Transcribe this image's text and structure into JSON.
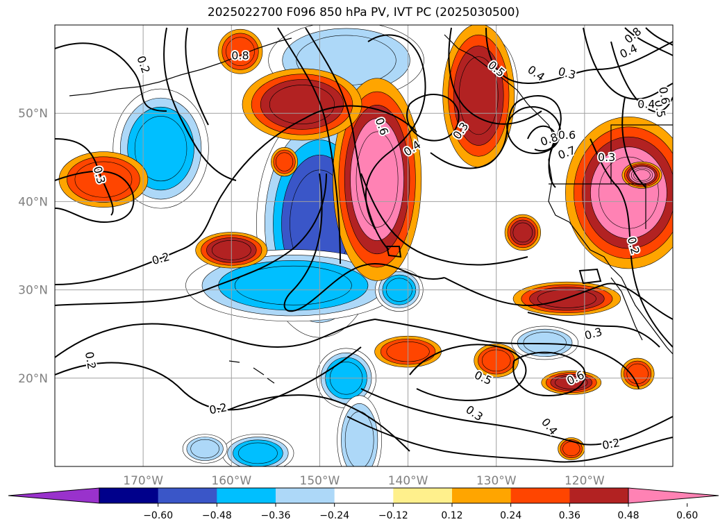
{
  "chart_data": {
    "type": "heatmap",
    "title": "2025022700 F096 850 hPa PV, IVT PC (2025030500)",
    "map": {
      "lon_range": [
        -180,
        -110
      ],
      "lat_range": [
        10,
        60
      ],
      "lat_ticks": [
        {
          "value": 50,
          "label": "50°N"
        },
        {
          "value": 40,
          "label": "40°N"
        },
        {
          "value": 30,
          "label": "30°N"
        },
        {
          "value": 20,
          "label": "20°N"
        }
      ],
      "lon_ticks": [
        {
          "value": -170,
          "label": "170°W"
        },
        {
          "value": -160,
          "label": "160°W"
        },
        {
          "value": -150,
          "label": "150°W"
        },
        {
          "value": -140,
          "label": "140°W"
        },
        {
          "value": -130,
          "label": "130°W"
        },
        {
          "value": -120,
          "label": "120°W"
        }
      ],
      "grid": true
    },
    "colorbar": {
      "extend": "both",
      "levels": [
        -0.72,
        -0.6,
        -0.48,
        -0.36,
        -0.24,
        -0.12,
        0.12,
        0.24,
        0.36,
        0.48,
        0.6,
        0.72
      ],
      "tick_labels": [
        "−0.60",
        "−0.48",
        "−0.36",
        "−0.24",
        "−0.12",
        "0.12",
        "0.24",
        "0.36",
        "0.48",
        "0.60"
      ],
      "colors": [
        "#9932cc",
        "#00008b",
        "#3a56c8",
        "#00bfff",
        "#add8f8",
        "#ffffff",
        "#fff08c",
        "#ffa500",
        "#ff4500",
        "#b22222",
        "#ff82b4"
      ]
    },
    "shaded_regions": [
      {
        "lon": -150,
        "lat": 38,
        "rx": 3,
        "ry": 4.5,
        "value": -0.66
      },
      {
        "lon": -150,
        "lat": 37.5,
        "rx": 5,
        "ry": 9,
        "value": -0.5
      },
      {
        "lon": -153,
        "lat": 30.5,
        "rx": 9,
        "ry": 3,
        "value": -0.4
      },
      {
        "lon": -168,
        "lat": 46,
        "rx": 4,
        "ry": 5,
        "value": -0.4
      },
      {
        "lon": -147,
        "lat": 56,
        "rx": 7,
        "ry": 3.5,
        "value": -0.3
      },
      {
        "lon": -147,
        "lat": 20,
        "rx": 2.5,
        "ry": 2.5,
        "value": -0.4
      },
      {
        "lon": -141,
        "lat": 30,
        "rx": 2,
        "ry": 1.8,
        "value": -0.4
      },
      {
        "lon": -124.5,
        "lat": 24,
        "rx": 3,
        "ry": 1.5,
        "value": -0.3
      },
      {
        "lon": -145.5,
        "lat": 13,
        "rx": 2,
        "ry": 4,
        "value": -0.3
      },
      {
        "lon": -157,
        "lat": 11.5,
        "rx": 3,
        "ry": 1.6,
        "value": -0.4
      },
      {
        "lon": -163,
        "lat": 12,
        "rx": 2,
        "ry": 1.3,
        "value": -0.3
      },
      {
        "lon": -131,
        "lat": 53,
        "rx": 3,
        "ry": 5,
        "value": -0.15
      },
      {
        "lon": -143.5,
        "lat": 42.5,
        "rx": 3.5,
        "ry": 8,
        "value": 0.5
      },
      {
        "lon": -152,
        "lat": 51,
        "rx": 5,
        "ry": 3,
        "value": 0.38
      },
      {
        "lon": -132,
        "lat": 52,
        "rx": 3,
        "ry": 6,
        "value": 0.4
      },
      {
        "lon": -115,
        "lat": 41,
        "rx": 5,
        "ry": 6,
        "value": 0.5
      },
      {
        "lon": -113.5,
        "lat": 43,
        "rx": 1.5,
        "ry": 1,
        "value": 0.66
      },
      {
        "lon": -174.5,
        "lat": 42.5,
        "rx": 4,
        "ry": 2.5,
        "value": 0.28
      },
      {
        "lon": -160,
        "lat": 34.5,
        "rx": 3,
        "ry": 1.5,
        "value": 0.38
      },
      {
        "lon": -122,
        "lat": 29,
        "rx": 4.5,
        "ry": 1.4,
        "value": 0.38
      },
      {
        "lon": -121.5,
        "lat": 19.5,
        "rx": 2.5,
        "ry": 1,
        "value": 0.4
      },
      {
        "lon": -140,
        "lat": 23,
        "rx": 3,
        "ry": 1.4,
        "value": 0.28
      },
      {
        "lon": -130,
        "lat": 22,
        "rx": 2,
        "ry": 1.5,
        "value": 0.28
      },
      {
        "lon": -127,
        "lat": 36.5,
        "rx": 1.5,
        "ry": 1.5,
        "value": 0.38
      },
      {
        "lon": -114,
        "lat": 20.5,
        "rx": 1.5,
        "ry": 1.4,
        "value": 0.28
      },
      {
        "lon": -159,
        "lat": 57,
        "rx": 2,
        "ry": 2,
        "value": 0.28
      },
      {
        "lon": -121.5,
        "lat": 12,
        "rx": 1.2,
        "ry": 1,
        "value": 0.3
      },
      {
        "lon": -154,
        "lat": 44.5,
        "rx": 1.2,
        "ry": 1.3,
        "value": 0.28
      }
    ],
    "contour_labels": [
      {
        "lon": -170,
        "lat": 55.5,
        "text": "0.2",
        "angle": 70
      },
      {
        "lon": -159,
        "lat": 56.5,
        "text": "0.8",
        "angle": 0
      },
      {
        "lon": -175,
        "lat": 43,
        "text": "0.3",
        "angle": 75
      },
      {
        "lon": -168,
        "lat": 33.5,
        "text": "0.2",
        "angle": -15
      },
      {
        "lon": -176,
        "lat": 22,
        "text": "0.2",
        "angle": 80
      },
      {
        "lon": -161.5,
        "lat": 16.5,
        "text": "0.2",
        "angle": -10
      },
      {
        "lon": -143,
        "lat": 48.5,
        "text": "0.6",
        "angle": 70
      },
      {
        "lon": -139.5,
        "lat": 46,
        "text": "0.4",
        "angle": -35
      },
      {
        "lon": -134,
        "lat": 48,
        "text": "0.3",
        "angle": -55
      },
      {
        "lon": -130,
        "lat": 55,
        "text": "0.5",
        "angle": 40
      },
      {
        "lon": -125.5,
        "lat": 54.5,
        "text": "0.4",
        "angle": 35
      },
      {
        "lon": -122,
        "lat": 54.5,
        "text": "0.3",
        "angle": 15
      },
      {
        "lon": -115,
        "lat": 57,
        "text": "0.4",
        "angle": -25
      },
      {
        "lon": -114.5,
        "lat": 58.8,
        "text": "0.8",
        "angle": -40
      },
      {
        "lon": -113,
        "lat": 51,
        "text": "0.4",
        "angle": 0
      },
      {
        "lon": -111.5,
        "lat": 50.5,
        "text": "0.5",
        "angle": 80
      },
      {
        "lon": -124,
        "lat": 47,
        "text": "0.8",
        "angle": -20
      },
      {
        "lon": -122,
        "lat": 45.5,
        "text": "0.7",
        "angle": -20
      },
      {
        "lon": -122,
        "lat": 47.5,
        "text": "0.6",
        "angle": 0
      },
      {
        "lon": -111,
        "lat": 52,
        "text": "0.6",
        "angle": 80
      },
      {
        "lon": -117.5,
        "lat": 45,
        "text": "0.3",
        "angle": 0
      },
      {
        "lon": -114.5,
        "lat": 35,
        "text": "0.2",
        "angle": 75
      },
      {
        "lon": -119,
        "lat": 25,
        "text": "0.3",
        "angle": -15
      },
      {
        "lon": -131.5,
        "lat": 20,
        "text": "0.5",
        "angle": 25
      },
      {
        "lon": -121,
        "lat": 20,
        "text": "0.6",
        "angle": -25
      },
      {
        "lon": -132.5,
        "lat": 16,
        "text": "0.3",
        "angle": 35
      },
      {
        "lon": -124,
        "lat": 14.5,
        "text": "0.4",
        "angle": 50
      },
      {
        "lon": -117,
        "lat": 12.5,
        "text": "0.2",
        "angle": -10
      }
    ]
  }
}
